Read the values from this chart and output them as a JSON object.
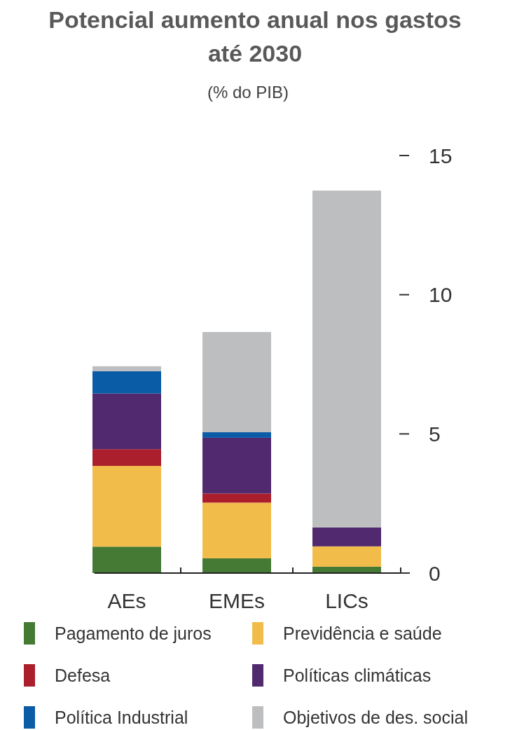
{
  "chart_data": {
    "type": "bar",
    "title": "Potencial aumento anual nos gastos até 2030",
    "subtitle": "(% do PIB)",
    "categories": [
      "AEs",
      "EMEs",
      "LICs"
    ],
    "stacked": true,
    "series": [
      {
        "name": "Pagamento de juros",
        "color": "#457a35",
        "values": [
          0.95,
          0.53,
          0.23
        ]
      },
      {
        "name": "Previdência e saúde",
        "color": "#f2bc4b",
        "values": [
          2.9,
          2.0,
          0.73
        ]
      },
      {
        "name": "Defesa",
        "color": "#ab1f2d",
        "values": [
          0.6,
          0.33,
          null
        ]
      },
      {
        "name": "Políticas climáticas",
        "color": "#51296e",
        "values": [
          2.0,
          2.0,
          0.68
        ]
      },
      {
        "name": "Política Industrial",
        "color": "#0b5ca6",
        "values": [
          0.8,
          0.2,
          null
        ]
      },
      {
        "name": "Objetivos de des. social",
        "color": "#bdbec0",
        "values": [
          0.18,
          3.6,
          12.1
        ]
      }
    ],
    "ylim": [
      0,
      15
    ],
    "yticks": [
      0,
      5,
      10,
      15
    ],
    "grid": false,
    "legend": "bottom"
  }
}
